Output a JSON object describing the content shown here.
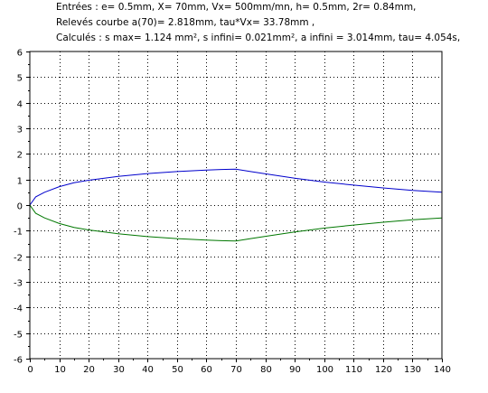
{
  "header": {
    "line1": "Entrées : e= 0.5mm,  X= 70mm,  Vx= 500mm/mn,  h= 0.5mm,  2r= 0.84mm,",
    "line2": "Relevés courbe   a(70)= 2.818mm,  tau*Vx= 33.78mm ,",
    "line3": "Calculés : s max= 1.124 mm²,  s infini= 0.021mm²,  a infini = 3.014mm,  tau= 4.054s,"
  },
  "chart_data": {
    "type": "line",
    "title": "",
    "xlabel": "",
    "ylabel": "",
    "xlim": [
      0,
      140
    ],
    "ylim": [
      -6,
      6
    ],
    "xticks": [
      "0",
      "10",
      "20",
      "30",
      "40",
      "50",
      "60",
      "70",
      "80",
      "90",
      "100",
      "110",
      "120",
      "130",
      "140"
    ],
    "yticks": [
      "6",
      "5",
      "4",
      "3",
      "2",
      "1",
      "0",
      "-1",
      "-2",
      "-3",
      "-4",
      "-5",
      "-6"
    ],
    "grid": true,
    "series": [
      {
        "color": "#0000cc",
        "x": [
          0,
          2,
          5,
          10,
          15,
          20,
          30,
          40,
          50,
          60,
          65,
          70,
          75,
          80,
          90,
          100,
          110,
          120,
          130,
          140
        ],
        "y": [
          0,
          0.32,
          0.5,
          0.72,
          0.87,
          0.97,
          1.12,
          1.23,
          1.31,
          1.37,
          1.39,
          1.4,
          1.31,
          1.22,
          1.05,
          0.9,
          0.78,
          0.67,
          0.57,
          0.5
        ]
      },
      {
        "color": "#007700",
        "x": [
          0,
          2,
          5,
          10,
          15,
          20,
          30,
          40,
          50,
          60,
          65,
          70,
          75,
          80,
          90,
          100,
          110,
          120,
          130,
          140
        ],
        "y": [
          0,
          -0.32,
          -0.5,
          -0.72,
          -0.87,
          -0.97,
          -1.12,
          -1.23,
          -1.31,
          -1.37,
          -1.39,
          -1.4,
          -1.31,
          -1.22,
          -1.05,
          -0.9,
          -0.78,
          -0.67,
          -0.57,
          -0.5
        ]
      }
    ]
  }
}
